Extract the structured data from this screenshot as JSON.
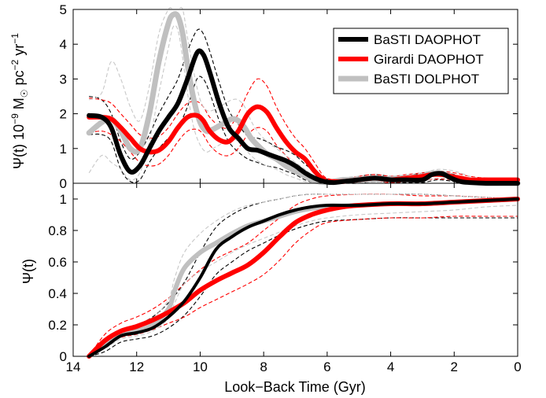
{
  "chart_data": [
    {
      "type": "line",
      "panel": "top",
      "ylabel_parts": {
        "main": "Ψ(t) 10",
        "exp1": "−9",
        "mid": " M",
        "sub": "☉",
        "mid2": " pc",
        "exp2": "−2",
        "mid3": " yr",
        "exp3": "−1"
      },
      "xlim": [
        14,
        0
      ],
      "ylim": [
        0,
        5
      ],
      "x_inverted": true,
      "yticks": [
        "0",
        "1",
        "2",
        "3",
        "4",
        "5"
      ],
      "legend_position": "top-right",
      "series": [
        {
          "name": "BaSTI DAOPHOT",
          "color": "#000000",
          "width": 6,
          "x": [
            13.5,
            13.1,
            12.8,
            12.5,
            12.2,
            11.9,
            11.6,
            11.3,
            11.0,
            10.7,
            10.4,
            10.1,
            9.9,
            9.7,
            9.4,
            9.1,
            8.8,
            8.5,
            8.2,
            7.9,
            7.6,
            7.3,
            7.0,
            6.7,
            6.4,
            6.1,
            5.8,
            5.5,
            5.0,
            4.5,
            4.0,
            3.5,
            3.0,
            2.7,
            2.4,
            2.1,
            1.8,
            1.5,
            1.0,
            0.5,
            0
          ],
          "y": [
            1.95,
            1.9,
            1.6,
            0.8,
            0.33,
            0.5,
            1.0,
            1.5,
            1.9,
            2.3,
            3.0,
            3.75,
            3.7,
            3.2,
            2.3,
            1.6,
            1.3,
            1.0,
            0.95,
            0.85,
            0.75,
            0.65,
            0.5,
            0.3,
            0.15,
            0.05,
            0.02,
            0.05,
            0.1,
            0.15,
            0.1,
            0.1,
            0.1,
            0.25,
            0.28,
            0.15,
            0.05,
            0.02,
            0.0,
            0.0,
            0.0
          ]
        },
        {
          "name": "Girardi DAOPHOT",
          "color": "#ff0000",
          "width": 6,
          "x": [
            13.5,
            13.1,
            12.8,
            12.5,
            12.2,
            11.9,
            11.6,
            11.3,
            11.0,
            10.7,
            10.4,
            10.1,
            9.9,
            9.7,
            9.4,
            9.1,
            8.8,
            8.5,
            8.2,
            7.9,
            7.6,
            7.3,
            7.0,
            6.7,
            6.4,
            6.1,
            5.8,
            5.5,
            5.0,
            4.5,
            4.0,
            3.5,
            3.0,
            2.7,
            2.4,
            2.1,
            1.8,
            1.5,
            1.0,
            0.5,
            0
          ],
          "y": [
            1.9,
            1.9,
            1.85,
            1.6,
            1.3,
            1.0,
            0.9,
            0.95,
            1.2,
            1.6,
            1.9,
            1.95,
            1.8,
            1.5,
            1.25,
            1.2,
            1.5,
            2.0,
            2.2,
            2.05,
            1.6,
            1.2,
            0.9,
            0.7,
            0.35,
            0.1,
            0.05,
            0.05,
            0.1,
            0.15,
            0.1,
            0.15,
            0.2,
            0.25,
            0.25,
            0.2,
            0.15,
            0.1,
            0.1,
            0.1,
            0.1
          ]
        },
        {
          "name": "BaSTI DOLPHOT",
          "color": "#c0c0c0",
          "width": 7,
          "x": [
            13.5,
            13.1,
            12.8,
            12.5,
            12.2,
            11.9,
            11.6,
            11.3,
            11.0,
            10.85,
            10.7,
            10.55,
            10.4,
            10.2,
            10.0,
            9.8,
            9.6,
            9.4,
            9.2,
            9.0,
            8.8,
            8.6,
            8.4,
            8.2,
            7.9,
            7.6,
            7.3,
            7.0,
            6.7,
            6.4,
            6.1,
            5.8,
            5.5,
            5.0,
            4.5,
            4.0,
            3.5,
            3.0,
            2.7,
            2.4,
            2.1,
            1.8,
            1.5,
            1.0,
            0.5,
            0
          ],
          "y": [
            1.45,
            1.75,
            1.85,
            1.5,
            1.0,
            1.0,
            2.0,
            3.5,
            4.6,
            4.85,
            4.8,
            4.3,
            3.4,
            2.4,
            1.75,
            1.5,
            1.55,
            1.65,
            1.75,
            1.85,
            1.8,
            1.6,
            1.3,
            1.1,
            0.85,
            0.7,
            0.5,
            0.35,
            0.2,
            0.08,
            0.03,
            0.05,
            0.1,
            0.1,
            0.12,
            0.12,
            0.15,
            0.2,
            0.28,
            0.28,
            0.2,
            0.1,
            0.05,
            0.0,
            0.0,
            0.0
          ]
        }
      ],
      "errors": [
        {
          "color": "#000000",
          "x": [
            13.5,
            13.1,
            12.8,
            12.5,
            12.2,
            11.9,
            11.6,
            11.3,
            11.0,
            10.7,
            10.4,
            10.1,
            9.9,
            9.7,
            9.4,
            9.1,
            8.8,
            8.5,
            8.2,
            7.9,
            7.6,
            7.3,
            7.0,
            6.7,
            6.4,
            6.1,
            5.8,
            5.5,
            5.0,
            4.5,
            4.0,
            3.5,
            3.0,
            2.5,
            2.0,
            1.5,
            1.0,
            0
          ],
          "upper": [
            2.5,
            2.4,
            2.0,
            1.2,
            0.7,
            0.9,
            1.4,
            2.0,
            2.5,
            3.0,
            3.8,
            4.4,
            4.3,
            3.8,
            2.9,
            2.1,
            1.7,
            1.35,
            1.3,
            1.2,
            1.05,
            0.95,
            0.8,
            0.55,
            0.35,
            0.15,
            0.1,
            0.1,
            0.2,
            0.25,
            0.2,
            0.2,
            0.3,
            0.35,
            0.25,
            0.1,
            0.05,
            0.0
          ],
          "lower": [
            1.4,
            1.4,
            1.2,
            0.4,
            0.05,
            0.1,
            0.6,
            1.0,
            1.3,
            1.6,
            2.2,
            3.0,
            3.0,
            2.6,
            1.8,
            1.2,
            0.9,
            0.7,
            0.6,
            0.5,
            0.45,
            0.35,
            0.25,
            0.1,
            0.02,
            0.0,
            0.0,
            0.0,
            0.0,
            0.05,
            0.02,
            0.02,
            0.02,
            0.1,
            0.05,
            0.0,
            0.0,
            0.0
          ]
        },
        {
          "color": "#ff0000",
          "x": [
            13.5,
            13.1,
            12.8,
            12.5,
            12.2,
            11.9,
            11.6,
            11.3,
            11.0,
            10.7,
            10.4,
            10.1,
            9.9,
            9.7,
            9.4,
            9.1,
            8.8,
            8.5,
            8.2,
            7.9,
            7.6,
            7.3,
            7.0,
            6.7,
            6.4,
            6.1,
            5.8,
            5.5,
            5.0,
            4.5,
            4.0,
            3.5,
            3.0,
            2.5,
            2.0,
            1.5,
            1.0,
            0
          ],
          "upper": [
            2.45,
            2.4,
            2.3,
            2.0,
            1.7,
            1.4,
            1.3,
            1.35,
            1.6,
            2.0,
            2.3,
            2.35,
            2.2,
            1.9,
            1.65,
            1.6,
            2.0,
            2.6,
            3.0,
            2.8,
            2.2,
            1.7,
            1.3,
            1.0,
            0.6,
            0.2,
            0.1,
            0.1,
            0.2,
            0.25,
            0.2,
            0.25,
            0.3,
            0.35,
            0.3,
            0.2,
            0.15,
            0.12
          ],
          "lower": [
            1.45,
            1.5,
            1.4,
            1.2,
            0.9,
            0.6,
            0.5,
            0.55,
            0.8,
            1.2,
            1.5,
            1.55,
            1.4,
            1.1,
            0.85,
            0.8,
            1.0,
            1.4,
            1.6,
            1.5,
            1.1,
            0.8,
            0.5,
            0.35,
            0.1,
            0.02,
            0.0,
            0.0,
            0.02,
            0.05,
            0.02,
            0.05,
            0.1,
            0.12,
            0.1,
            0.05,
            0.05,
            0.05
          ]
        },
        {
          "color": "#c8c8c8",
          "x": [
            13.5,
            13.1,
            12.8,
            12.5,
            12.2,
            11.9,
            11.6,
            11.3,
            11.0,
            10.85,
            10.7,
            10.55,
            10.4,
            10.2,
            10.0,
            9.8,
            9.6,
            9.4,
            9.2,
            9.0,
            8.8,
            8.6,
            8.4,
            8.2,
            7.9,
            7.6,
            7.3,
            7.0,
            6.7,
            6.4,
            6.1,
            5.5,
            5.0,
            4.0,
            3.0,
            2.5,
            2.0,
            1.5,
            1.0,
            0
          ],
          "upper": [
            2.4,
            2.6,
            3.5,
            3.0,
            2.2,
            1.8,
            2.8,
            4.3,
            5.0,
            5.0,
            5.0,
            5.0,
            4.2,
            3.2,
            2.4,
            2.1,
            2.1,
            2.2,
            2.3,
            2.4,
            2.4,
            2.2,
            1.8,
            1.5,
            1.2,
            1.0,
            0.8,
            0.6,
            0.4,
            0.2,
            0.1,
            0.15,
            0.2,
            0.2,
            0.3,
            0.4,
            0.35,
            0.2,
            0.1,
            0.05
          ],
          "lower": [
            0.3,
            0.8,
            0.6,
            0.4,
            0.1,
            0.3,
            1.2,
            2.6,
            3.9,
            4.5,
            4.4,
            3.6,
            2.6,
            1.6,
            1.1,
            0.9,
            1.0,
            1.1,
            1.2,
            1.3,
            1.2,
            1.0,
            0.8,
            0.65,
            0.5,
            0.4,
            0.25,
            0.15,
            0.05,
            0.0,
            0.0,
            0.0,
            0.02,
            0.05,
            0.1,
            0.15,
            0.1,
            0.02,
            0.0,
            0.0
          ]
        }
      ]
    },
    {
      "type": "line",
      "panel": "bottom",
      "ylabel": "Ψ(t)",
      "xlabel": "Look−Back Time (Gyr)",
      "xlim": [
        14,
        0
      ],
      "ylim": [
        0,
        1.1
      ],
      "x_inverted": true,
      "xticks": [
        "14",
        "12",
        "10",
        "8",
        "6",
        "4",
        "2",
        "0"
      ],
      "yticks": [
        "0",
        "0.2",
        "0.4",
        "0.6",
        "0.8",
        "1"
      ],
      "series": [
        {
          "name": "BaSTI DAOPHOT",
          "color": "#000000",
          "width": 4,
          "x": [
            13.5,
            13.0,
            12.5,
            12.0,
            11.5,
            11.0,
            10.5,
            10.0,
            9.5,
            9.0,
            8.5,
            8.0,
            7.5,
            7.0,
            6.5,
            6.0,
            5.0,
            4.0,
            3.0,
            2.0,
            1.0,
            0
          ],
          "y": [
            0.0,
            0.06,
            0.13,
            0.15,
            0.18,
            0.25,
            0.35,
            0.5,
            0.68,
            0.76,
            0.82,
            0.86,
            0.9,
            0.93,
            0.95,
            0.96,
            0.96,
            0.97,
            0.97,
            0.98,
            0.99,
            1.0
          ]
        },
        {
          "name": "Girardi DAOPHOT",
          "color": "#ff0000",
          "width": 6,
          "x": [
            13.5,
            13.0,
            12.5,
            12.0,
            11.5,
            11.0,
            10.5,
            10.0,
            9.5,
            9.0,
            8.5,
            8.0,
            7.5,
            7.0,
            6.5,
            6.0,
            5.5,
            5.0,
            4.0,
            3.0,
            2.0,
            1.0,
            0
          ],
          "y": [
            0.0,
            0.1,
            0.16,
            0.19,
            0.23,
            0.28,
            0.34,
            0.42,
            0.48,
            0.53,
            0.58,
            0.66,
            0.76,
            0.85,
            0.9,
            0.93,
            0.95,
            0.96,
            0.97,
            0.97,
            0.98,
            0.99,
            1.0
          ]
        },
        {
          "name": "BaSTI DOLPHOT",
          "color": "#c0c0c0",
          "width": 6,
          "x": [
            13.5,
            13.0,
            12.5,
            12.0,
            11.5,
            11.0,
            10.8,
            10.5,
            10.0,
            9.5,
            9.0,
            8.5,
            8.0,
            7.5,
            7.0,
            6.5,
            6.0,
            5.0,
            4.0,
            3.0,
            2.0,
            1.0,
            0
          ],
          "y": [
            0.0,
            0.08,
            0.14,
            0.16,
            0.2,
            0.3,
            0.42,
            0.56,
            0.66,
            0.72,
            0.78,
            0.83,
            0.86,
            0.89,
            0.92,
            0.94,
            0.95,
            0.96,
            0.97,
            0.97,
            0.98,
            0.99,
            1.0
          ]
        }
      ],
      "errors": [
        {
          "color": "#000000",
          "x": [
            13.5,
            13.0,
            12.5,
            12.0,
            11.5,
            11.0,
            10.5,
            10.0,
            9.5,
            9.0,
            8.5,
            8.0,
            7.5,
            7.0,
            6.5,
            6.0,
            5.0,
            4.0,
            3.0,
            2.0,
            1.0,
            0
          ],
          "upper": [
            0.0,
            0.09,
            0.17,
            0.2,
            0.25,
            0.34,
            0.47,
            0.66,
            0.82,
            0.9,
            0.95,
            0.98,
            1.0,
            1.02,
            1.03,
            1.03,
            1.03,
            1.03,
            1.03,
            1.02,
            1.01,
            1.0
          ],
          "lower": [
            0.0,
            0.03,
            0.09,
            0.11,
            0.13,
            0.18,
            0.26,
            0.38,
            0.52,
            0.6,
            0.67,
            0.72,
            0.77,
            0.81,
            0.84,
            0.86,
            0.87,
            0.88,
            0.88,
            0.88,
            0.88,
            0.88
          ]
        },
        {
          "color": "#ff0000",
          "x": [
            13.5,
            13.0,
            12.5,
            12.0,
            11.5,
            11.0,
            10.5,
            10.0,
            9.5,
            9.0,
            8.5,
            8.0,
            7.5,
            7.0,
            6.5,
            6.0,
            5.0,
            4.0,
            3.0,
            2.0,
            1.0,
            0
          ],
          "upper": [
            0.0,
            0.14,
            0.21,
            0.25,
            0.3,
            0.37,
            0.46,
            0.55,
            0.62,
            0.67,
            0.72,
            0.8,
            0.88,
            0.96,
            1.0,
            1.02,
            1.03,
            1.03,
            1.02,
            1.02,
            1.01,
            1.0
          ],
          "lower": [
            0.0,
            0.07,
            0.12,
            0.14,
            0.17,
            0.21,
            0.25,
            0.31,
            0.36,
            0.41,
            0.46,
            0.52,
            0.61,
            0.72,
            0.8,
            0.85,
            0.87,
            0.88,
            0.88,
            0.89,
            0.89,
            0.89
          ]
        },
        {
          "color": "#c8c8c8",
          "x": [
            13.5,
            13.0,
            12.5,
            12.0,
            11.5,
            11.0,
            10.8,
            10.5,
            10.0,
            9.5,
            9.0,
            8.5,
            8.0,
            7.5,
            7.0,
            6.5,
            6.0,
            5.0,
            4.0,
            3.0,
            2.0,
            1.0,
            0
          ],
          "upper": [
            0.0,
            0.1,
            0.17,
            0.19,
            0.24,
            0.36,
            0.5,
            0.66,
            0.78,
            0.86,
            0.92,
            0.96,
            0.98,
            1.0,
            1.02,
            1.03,
            1.03,
            1.03,
            1.03,
            1.03,
            1.02,
            1.01,
            1.0
          ],
          "lower": [
            0.0,
            0.05,
            0.11,
            0.13,
            0.16,
            0.24,
            0.34,
            0.46,
            0.54,
            0.6,
            0.66,
            0.71,
            0.75,
            0.79,
            0.83,
            0.86,
            0.88,
            0.9,
            0.91,
            0.92,
            0.93,
            0.95,
            0.96
          ]
        }
      ]
    }
  ]
}
